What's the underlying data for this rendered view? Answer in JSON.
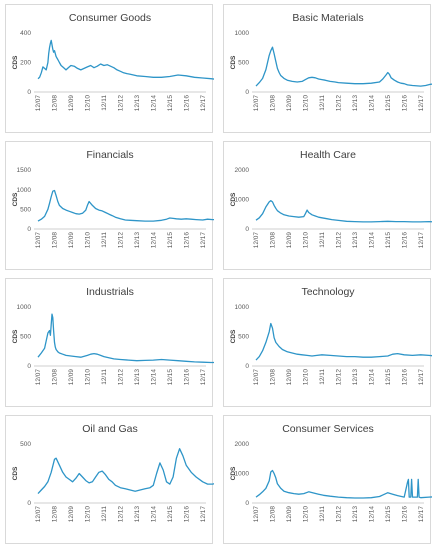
{
  "series_color": "#2e95c8",
  "chart_data": [
    {
      "type": "line",
      "title": "Consumer Goods",
      "ylabel": "CDS",
      "ylim": [
        0,
        400
      ],
      "yticks": [
        0,
        200,
        400
      ],
      "xticks": [
        "12/07",
        "12/08",
        "12/09",
        "12/10",
        "12/11",
        "12/12",
        "12/13",
        "12/14",
        "12/15",
        "12/16",
        "12/17"
      ],
      "x": [
        0,
        0.1,
        0.2,
        0.3,
        0.4,
        0.5,
        0.6,
        0.65,
        0.7,
        0.75,
        0.8,
        0.85,
        0.9,
        0.95,
        1.0,
        1.1,
        1.2,
        1.3,
        1.4,
        1.5,
        1.6,
        1.7,
        1.8,
        1.9,
        2.0,
        2.2,
        2.4,
        2.6,
        2.8,
        3.0,
        3.2,
        3.4,
        3.6,
        3.8,
        4.0,
        4.2,
        4.4,
        4.6,
        4.8,
        5.0,
        5.2,
        5.4,
        5.6,
        5.8,
        6.0,
        6.5,
        7.0,
        7.5,
        8.0,
        8.5,
        9.0,
        9.5,
        10.0,
        10.5,
        10.9
      ],
      "values": [
        90,
        100,
        130,
        170,
        160,
        150,
        200,
        260,
        300,
        330,
        350,
        320,
        290,
        270,
        280,
        240,
        220,
        200,
        180,
        170,
        160,
        150,
        160,
        170,
        180,
        175,
        160,
        150,
        160,
        170,
        180,
        165,
        175,
        190,
        180,
        185,
        175,
        165,
        150,
        140,
        130,
        125,
        120,
        115,
        110,
        105,
        100,
        100,
        105,
        115,
        110,
        100,
        95,
        90,
        85
      ]
    },
    {
      "type": "line",
      "title": "Basic Materials",
      "ylabel": "CDS",
      "ylim": [
        0,
        1000
      ],
      "yticks": [
        0,
        500,
        1000
      ],
      "xticks": [
        "12/07",
        "12/08",
        "12/09",
        "12/10",
        "12/11",
        "12/12",
        "12/13",
        "12/14",
        "12/15",
        "12/16",
        "12/17"
      ],
      "x": [
        0,
        0.2,
        0.4,
        0.6,
        0.8,
        0.9,
        1.0,
        1.1,
        1.2,
        1.3,
        1.4,
        1.5,
        1.7,
        1.9,
        2.2,
        2.5,
        2.8,
        3.0,
        3.2,
        3.4,
        3.6,
        3.8,
        4.0,
        4.2,
        4.5,
        4.8,
        5.0,
        5.5,
        6.0,
        6.5,
        7.0,
        7.5,
        7.7,
        7.9,
        8.0,
        8.1,
        8.2,
        8.4,
        8.6,
        8.8,
        9.0,
        9.2,
        9.5,
        10.0,
        10.3,
        10.6,
        10.9
      ],
      "values": [
        100,
        160,
        230,
        380,
        620,
        700,
        760,
        650,
        520,
        400,
        330,
        280,
        230,
        200,
        180,
        170,
        180,
        210,
        240,
        250,
        240,
        220,
        210,
        200,
        180,
        170,
        160,
        150,
        140,
        140,
        150,
        170,
        220,
        290,
        330,
        300,
        240,
        200,
        170,
        150,
        140,
        120,
        110,
        100,
        110,
        130,
        140
      ]
    },
    {
      "type": "line",
      "title": "Financials",
      "ylabel": "CDS",
      "ylim": [
        0,
        1500
      ],
      "yticks": [
        0,
        500,
        1000,
        1500
      ],
      "xticks": [
        "12/07",
        "12/08",
        "12/09",
        "12/10",
        "12/11",
        "12/12",
        "12/13",
        "12/14",
        "12/15",
        "12/16",
        "12/17"
      ],
      "x": [
        0,
        0.2,
        0.4,
        0.6,
        0.7,
        0.8,
        0.9,
        1.0,
        1.1,
        1.2,
        1.3,
        1.5,
        1.7,
        1.9,
        2.1,
        2.3,
        2.5,
        2.7,
        2.9,
        3.0,
        3.1,
        3.2,
        3.3,
        3.5,
        3.7,
        3.9,
        4.1,
        4.3,
        4.5,
        4.7,
        5.0,
        5.3,
        5.6,
        6.0,
        6.5,
        7.0,
        7.5,
        7.8,
        8.0,
        8.2,
        8.4,
        8.7,
        9.0,
        9.3,
        9.6,
        10.0,
        10.3,
        10.6,
        10.9
      ],
      "values": [
        200,
        250,
        320,
        500,
        650,
        820,
        960,
        980,
        850,
        700,
        600,
        520,
        480,
        450,
        420,
        390,
        380,
        400,
        480,
        600,
        700,
        650,
        600,
        520,
        480,
        460,
        420,
        380,
        340,
        300,
        260,
        230,
        220,
        210,
        200,
        200,
        220,
        250,
        280,
        270,
        260,
        250,
        260,
        250,
        240,
        230,
        250,
        240,
        240
      ]
    },
    {
      "type": "line",
      "title": "Health Care",
      "ylabel": "CDS",
      "ylim": [
        0,
        2000
      ],
      "yticks": [
        0,
        1000,
        2000
      ],
      "xticks": [
        "12/07",
        "12/08",
        "12/09",
        "12/10",
        "12/11",
        "12/12",
        "12/13",
        "12/14",
        "12/15",
        "12/16",
        "12/17"
      ],
      "x": [
        0,
        0.2,
        0.4,
        0.6,
        0.8,
        0.9,
        1.0,
        1.1,
        1.2,
        1.3,
        1.5,
        1.7,
        2.0,
        2.3,
        2.6,
        2.9,
        3.0,
        3.1,
        3.2,
        3.4,
        3.6,
        3.8,
        4.0,
        4.3,
        4.6,
        5.0,
        5.5,
        6.0,
        6.5,
        7.0,
        7.5,
        8.0,
        8.5,
        9.0,
        9.5,
        10.0,
        10.5,
        10.9
      ],
      "values": [
        300,
        380,
        520,
        750,
        920,
        960,
        920,
        800,
        700,
        620,
        540,
        480,
        440,
        420,
        400,
        420,
        520,
        640,
        560,
        480,
        440,
        400,
        380,
        350,
        320,
        290,
        260,
        250,
        240,
        240,
        250,
        260,
        250,
        250,
        240,
        240,
        250,
        240
      ]
    },
    {
      "type": "line",
      "title": "Industrials",
      "ylabel": "CDS",
      "ylim": [
        0,
        1000
      ],
      "yticks": [
        0,
        500,
        1000
      ],
      "xticks": [
        "12/07",
        "12/08",
        "12/09",
        "12/10",
        "12/11",
        "12/12",
        "12/13",
        "12/14",
        "12/15",
        "12/16",
        "12/17"
      ],
      "x": [
        0,
        0.2,
        0.4,
        0.6,
        0.7,
        0.75,
        0.8,
        0.85,
        0.9,
        0.95,
        1.0,
        1.05,
        1.1,
        1.2,
        1.3,
        1.5,
        1.7,
        2.0,
        2.3,
        2.6,
        3.0,
        3.2,
        3.4,
        3.6,
        3.8,
        4.0,
        4.3,
        4.6,
        5.0,
        5.5,
        6.0,
        6.5,
        7.0,
        7.5,
        8.0,
        8.5,
        9.0,
        9.5,
        10.0,
        10.5,
        10.9
      ],
      "values": [
        150,
        220,
        300,
        560,
        600,
        520,
        700,
        880,
        820,
        600,
        400,
        320,
        280,
        240,
        220,
        200,
        180,
        170,
        160,
        150,
        180,
        200,
        210,
        200,
        180,
        160,
        140,
        120,
        110,
        100,
        90,
        95,
        100,
        110,
        100,
        90,
        80,
        70,
        65,
        60,
        60
      ]
    },
    {
      "type": "line",
      "title": "Technology",
      "ylabel": "CDS",
      "ylim": [
        0,
        1000
      ],
      "yticks": [
        0,
        500,
        1000
      ],
      "xticks": [
        "12/07",
        "12/08",
        "12/09",
        "12/10",
        "12/11",
        "12/12",
        "12/13",
        "12/14",
        "12/15",
        "12/16",
        "12/17"
      ],
      "x": [
        0,
        0.2,
        0.4,
        0.6,
        0.8,
        0.9,
        1.0,
        1.1,
        1.2,
        1.4,
        1.6,
        1.9,
        2.2,
        2.5,
        2.8,
        3.1,
        3.4,
        3.7,
        4.0,
        4.5,
        5.0,
        5.5,
        6.0,
        6.5,
        7.0,
        7.5,
        8.0,
        8.3,
        8.6,
        9.0,
        9.5,
        10.0,
        10.5,
        10.9
      ],
      "values": [
        100,
        160,
        260,
        400,
        580,
        720,
        640,
        480,
        400,
        330,
        280,
        240,
        220,
        200,
        190,
        180,
        170,
        180,
        190,
        180,
        170,
        160,
        160,
        150,
        150,
        160,
        170,
        200,
        210,
        190,
        180,
        190,
        180,
        170
      ]
    },
    {
      "type": "line",
      "title": "Oil and Gas",
      "ylabel": "CDS",
      "ylim": [
        0,
        500
      ],
      "yticks": [
        0,
        500
      ],
      "xticks": [
        "12/07",
        "12/08",
        "12/09",
        "12/10",
        "12/11",
        "12/12",
        "12/13",
        "12/14",
        "12/15",
        "12/16",
        "12/17"
      ],
      "x": [
        0,
        0.2,
        0.4,
        0.6,
        0.8,
        1.0,
        1.1,
        1.3,
        1.5,
        1.7,
        1.9,
        2.1,
        2.3,
        2.5,
        2.7,
        2.9,
        3.1,
        3.3,
        3.5,
        3.7,
        3.9,
        4.1,
        4.3,
        4.5,
        4.7,
        5.0,
        5.3,
        5.6,
        5.9,
        6.2,
        6.5,
        6.8,
        7.0,
        7.2,
        7.4,
        7.6,
        7.8,
        8.0,
        8.2,
        8.4,
        8.6,
        8.8,
        9.0,
        9.3,
        9.6,
        10.0,
        10.3,
        10.6,
        10.9
      ],
      "values": [
        80,
        110,
        140,
        180,
        260,
        370,
        380,
        320,
        260,
        220,
        200,
        180,
        210,
        250,
        220,
        190,
        170,
        180,
        220,
        260,
        270,
        240,
        200,
        180,
        150,
        130,
        120,
        110,
        100,
        110,
        120,
        130,
        150,
        250,
        340,
        280,
        180,
        160,
        220,
        380,
        460,
        400,
        320,
        260,
        220,
        180,
        160,
        160,
        170
      ]
    },
    {
      "type": "line",
      "title": "Consumer Services",
      "ylabel": "CDS",
      "ylim": [
        0,
        2000
      ],
      "yticks": [
        0,
        1000,
        2000
      ],
      "xticks": [
        "12/07",
        "12/08",
        "12/09",
        "12/10",
        "12/11",
        "12/12",
        "12/13",
        "12/14",
        "12/15",
        "12/16",
        "12/17"
      ],
      "x": [
        0,
        0.2,
        0.4,
        0.6,
        0.8,
        0.9,
        1.0,
        1.1,
        1.2,
        1.3,
        1.5,
        1.7,
        2.0,
        2.3,
        2.6,
        2.9,
        3.2,
        3.5,
        3.8,
        4.1,
        4.5,
        5.0,
        5.5,
        6.0,
        6.5,
        7.0,
        7.5,
        8.0,
        8.3,
        8.6,
        9.0,
        9.2,
        9.25,
        9.3,
        9.4,
        9.45,
        9.5,
        9.6,
        9.8,
        9.85,
        9.9,
        10.0,
        10.5,
        10.9
      ],
      "values": [
        200,
        280,
        380,
        500,
        750,
        1050,
        1100,
        1000,
        850,
        650,
        500,
        400,
        350,
        320,
        300,
        320,
        380,
        340,
        300,
        260,
        230,
        200,
        180,
        170,
        170,
        180,
        220,
        350,
        300,
        250,
        200,
        700,
        800,
        200,
        200,
        800,
        200,
        200,
        200,
        800,
        200,
        180,
        200,
        210
      ]
    }
  ]
}
